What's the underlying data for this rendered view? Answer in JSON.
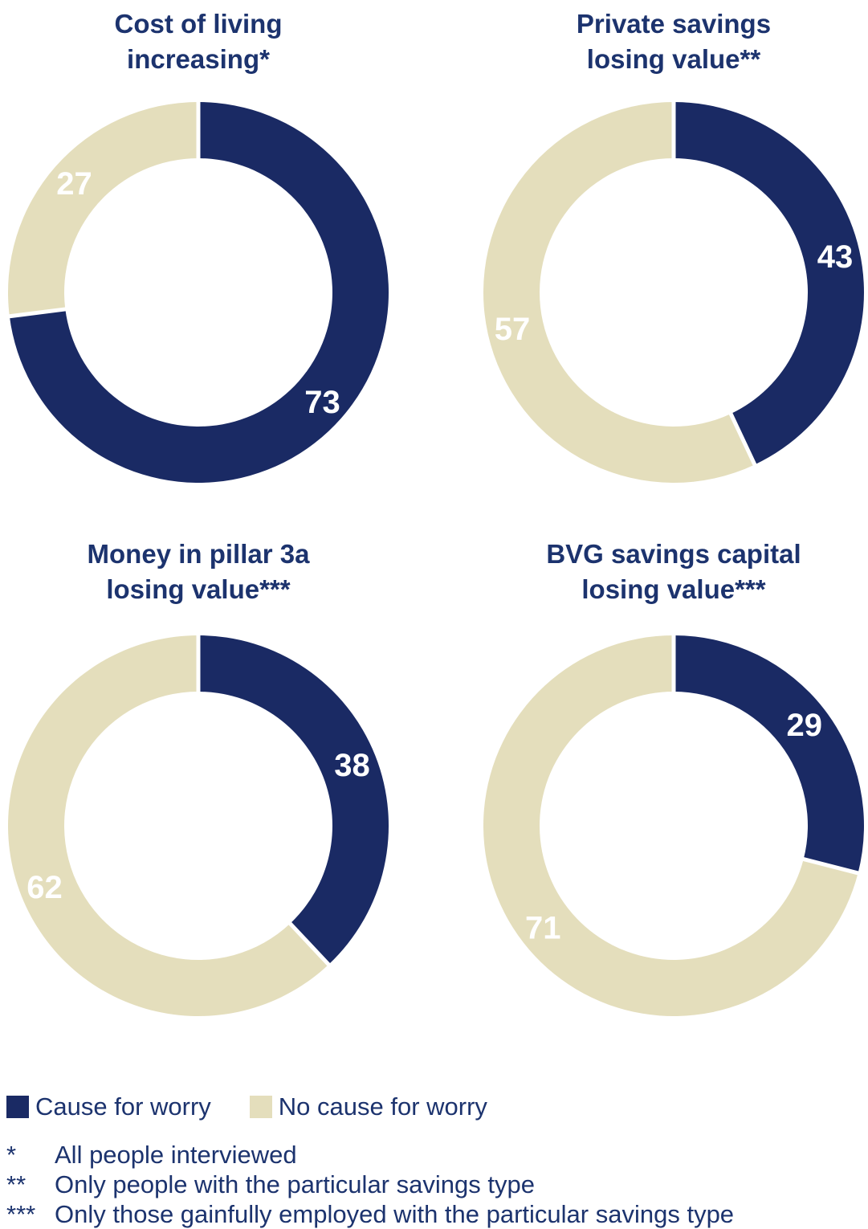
{
  "colors": {
    "worry": "#1a2a64",
    "no_worry": "#e4debc",
    "title_text": "#1c336e",
    "value_label_text": "#ffffff",
    "separator": "#ffffff",
    "background": "#ffffff"
  },
  "legend": {
    "items": [
      {
        "label": "Cause for worry",
        "color_key": "worry"
      },
      {
        "label": "No cause for worry",
        "color_key": "no_worry"
      }
    ]
  },
  "footnotes": [
    {
      "marker": "*",
      "text": "All people interviewed"
    },
    {
      "marker": "**",
      "text": "Only people with the particular savings type"
    },
    {
      "marker": "***",
      "text": "Only those gainfully employed with the particular savings type"
    }
  ],
  "chart_data": {
    "type": "pie",
    "subtype": "donut",
    "unit": "percent",
    "legend_position": "bottom",
    "series_names": [
      "Cause for worry",
      "No cause for worry"
    ],
    "charts": [
      {
        "title": "Cost of living increasing*",
        "title_lines": [
          "Cost of living",
          "increasing*"
        ],
        "cause_for_worry": 73,
        "no_cause_for_worry": 27
      },
      {
        "title": "Private savings losing value**",
        "title_lines": [
          "Private savings",
          "losing value**"
        ],
        "cause_for_worry": 43,
        "no_cause_for_worry": 57
      },
      {
        "title": "Money in pillar 3a losing value***",
        "title_lines": [
          "Money in pillar 3a",
          "losing value***"
        ],
        "cause_for_worry": 38,
        "no_cause_for_worry": 62
      },
      {
        "title": "BVG savings capital losing value***",
        "title_lines": [
          "BVG savings capital",
          "losing value***"
        ],
        "cause_for_worry": 29,
        "no_cause_for_worry": 71
      }
    ]
  }
}
